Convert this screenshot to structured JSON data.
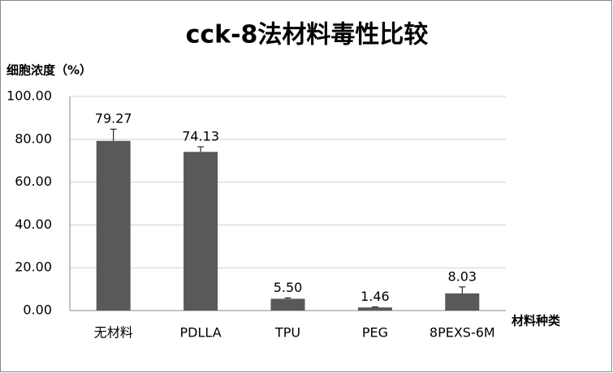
{
  "chart_data": {
    "type": "bar",
    "title": "cck-8法材料毒性比较",
    "y_label": "细胞浓度（%）",
    "x_label": "材料种类",
    "categories": [
      "无材料",
      "PDLLA",
      "TPU",
      "PEG",
      "8PEXS-6M"
    ],
    "values": [
      79.27,
      74.13,
      5.5,
      1.46,
      8.03
    ],
    "value_labels": [
      "79.27",
      "74.13",
      "5.50",
      "1.46",
      "8.03"
    ],
    "errors": [
      5.5,
      2.4,
      0.4,
      0.2,
      3.0
    ],
    "color": "#595959",
    "ylim": [
      0,
      100
    ],
    "yticks": [
      {
        "value": 0,
        "label": "0.00"
      },
      {
        "value": 20,
        "label": "20.00"
      },
      {
        "value": 40,
        "label": "40.00"
      },
      {
        "value": 60,
        "label": "60.00"
      },
      {
        "value": 80,
        "label": "80.00"
      },
      {
        "value": 100,
        "label": "100.00"
      }
    ],
    "grid": true
  }
}
